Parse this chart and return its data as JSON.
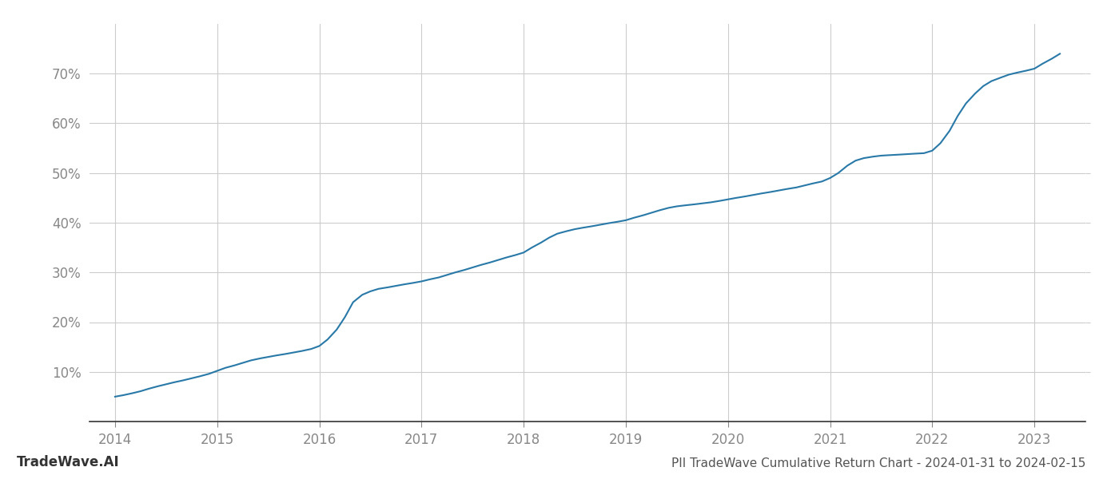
{
  "title": "PII TradeWave Cumulative Return Chart - 2024-01-31 to 2024-02-15",
  "watermark": "TradeWave.AI",
  "line_color": "#2979a8",
  "line_width": 1.5,
  "background_color": "#ffffff",
  "grid_color": "#cccccc",
  "x_values": [
    2014.0,
    2014.08,
    2014.17,
    2014.25,
    2014.33,
    2014.42,
    2014.5,
    2014.58,
    2014.67,
    2014.75,
    2014.83,
    2014.92,
    2015.0,
    2015.08,
    2015.17,
    2015.25,
    2015.33,
    2015.42,
    2015.5,
    2015.58,
    2015.67,
    2015.75,
    2015.83,
    2015.92,
    2016.0,
    2016.08,
    2016.17,
    2016.25,
    2016.33,
    2016.42,
    2016.5,
    2016.58,
    2016.67,
    2016.75,
    2016.83,
    2016.92,
    2017.0,
    2017.08,
    2017.17,
    2017.25,
    2017.33,
    2017.42,
    2017.5,
    2017.58,
    2017.67,
    2017.75,
    2017.83,
    2017.92,
    2018.0,
    2018.08,
    2018.17,
    2018.25,
    2018.33,
    2018.42,
    2018.5,
    2018.58,
    2018.67,
    2018.75,
    2018.83,
    2018.92,
    2019.0,
    2019.08,
    2019.17,
    2019.25,
    2019.33,
    2019.42,
    2019.5,
    2019.58,
    2019.67,
    2019.75,
    2019.83,
    2019.92,
    2020.0,
    2020.08,
    2020.17,
    2020.25,
    2020.33,
    2020.42,
    2020.5,
    2020.58,
    2020.67,
    2020.75,
    2020.83,
    2020.92,
    2021.0,
    2021.08,
    2021.17,
    2021.25,
    2021.33,
    2021.42,
    2021.5,
    2021.58,
    2021.67,
    2021.75,
    2021.83,
    2021.92,
    2022.0,
    2022.08,
    2022.17,
    2022.25,
    2022.33,
    2022.42,
    2022.5,
    2022.58,
    2022.67,
    2022.75,
    2022.83,
    2022.92,
    2023.0,
    2023.08,
    2023.17,
    2023.25
  ],
  "y_values": [
    5.0,
    5.3,
    5.7,
    6.1,
    6.6,
    7.1,
    7.5,
    7.9,
    8.3,
    8.7,
    9.1,
    9.6,
    10.2,
    10.8,
    11.3,
    11.8,
    12.3,
    12.7,
    13.0,
    13.3,
    13.6,
    13.9,
    14.2,
    14.6,
    15.2,
    16.5,
    18.5,
    21.0,
    24.0,
    25.5,
    26.2,
    26.7,
    27.0,
    27.3,
    27.6,
    27.9,
    28.2,
    28.6,
    29.0,
    29.5,
    30.0,
    30.5,
    31.0,
    31.5,
    32.0,
    32.5,
    33.0,
    33.5,
    34.0,
    35.0,
    36.0,
    37.0,
    37.8,
    38.3,
    38.7,
    39.0,
    39.3,
    39.6,
    39.9,
    40.2,
    40.5,
    41.0,
    41.5,
    42.0,
    42.5,
    43.0,
    43.3,
    43.5,
    43.7,
    43.9,
    44.1,
    44.4,
    44.7,
    45.0,
    45.3,
    45.6,
    45.9,
    46.2,
    46.5,
    46.8,
    47.1,
    47.5,
    47.9,
    48.3,
    49.0,
    50.0,
    51.5,
    52.5,
    53.0,
    53.3,
    53.5,
    53.6,
    53.7,
    53.8,
    53.9,
    54.0,
    54.5,
    56.0,
    58.5,
    61.5,
    64.0,
    66.0,
    67.5,
    68.5,
    69.2,
    69.8,
    70.2,
    70.6,
    71.0,
    72.0,
    73.0,
    74.0
  ],
  "xlim": [
    2013.75,
    2023.5
  ],
  "ylim": [
    0,
    80
  ],
  "yticks": [
    10,
    20,
    30,
    40,
    50,
    60,
    70
  ],
  "xticks": [
    2014,
    2015,
    2016,
    2017,
    2018,
    2019,
    2020,
    2021,
    2022,
    2023
  ],
  "tick_fontsize": 12,
  "title_fontsize": 11,
  "watermark_fontsize": 12
}
